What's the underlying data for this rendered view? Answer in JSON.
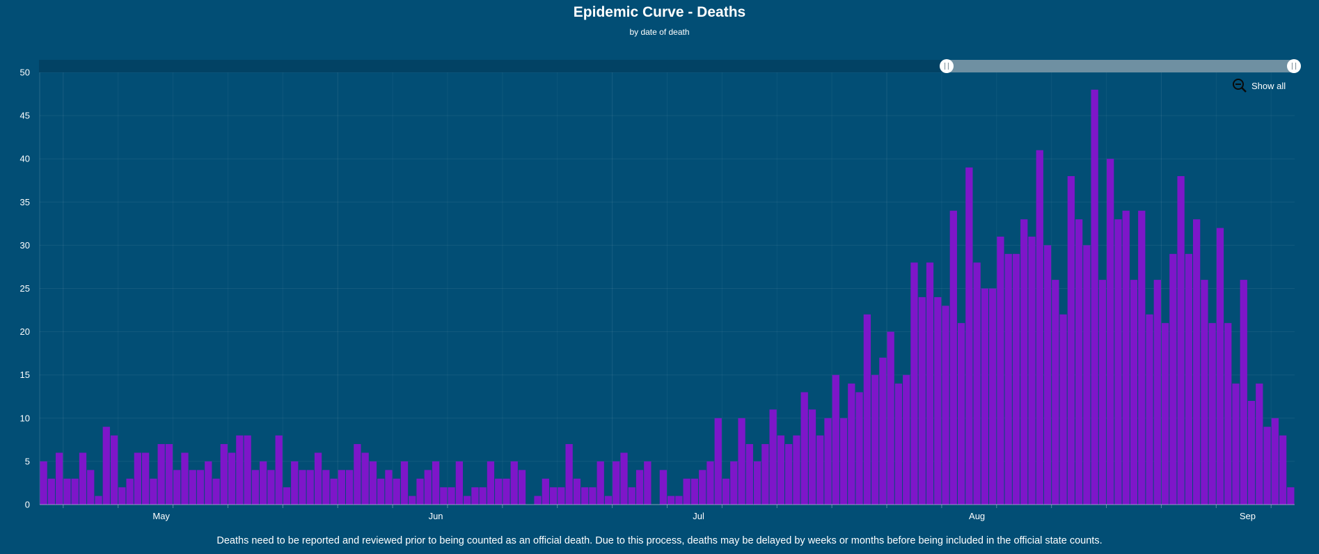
{
  "chart_data": {
    "type": "bar",
    "title": "Epidemic Curve - Deaths",
    "subtitle": "by date of death",
    "ylim": [
      0,
      50
    ],
    "yticks": [
      0,
      5,
      10,
      15,
      20,
      25,
      30,
      35,
      40,
      45,
      50
    ],
    "xtick_labels": [
      "May",
      "Jun",
      "Jul",
      "Aug",
      "Sep"
    ],
    "grid": true,
    "bar_color": "#7e16c9",
    "values": [
      5,
      3,
      6,
      3,
      3,
      6,
      4,
      1,
      9,
      8,
      2,
      3,
      6,
      6,
      3,
      7,
      7,
      4,
      6,
      4,
      4,
      5,
      3,
      7,
      6,
      8,
      8,
      4,
      5,
      4,
      8,
      2,
      5,
      4,
      4,
      6,
      4,
      3,
      4,
      4,
      7,
      6,
      5,
      3,
      4,
      3,
      5,
      1,
      3,
      4,
      5,
      2,
      2,
      5,
      1,
      2,
      2,
      5,
      3,
      3,
      5,
      4,
      0,
      1,
      3,
      2,
      2,
      7,
      3,
      2,
      2,
      5,
      1,
      5,
      6,
      2,
      4,
      5,
      0,
      4,
      1,
      1,
      3,
      3,
      4,
      5,
      10,
      3,
      5,
      10,
      7,
      5,
      7,
      11,
      8,
      7,
      8,
      13,
      11,
      8,
      10,
      15,
      10,
      14,
      13,
      22,
      15,
      17,
      20,
      14,
      15,
      28,
      24,
      28,
      24,
      23,
      34,
      21,
      39,
      28,
      25,
      25,
      31,
      29,
      29,
      33,
      31,
      41,
      30,
      26,
      22,
      38,
      33,
      30,
      48,
      26,
      40,
      33,
      34,
      26,
      34,
      22,
      26,
      21,
      29,
      38,
      29,
      33,
      26,
      21,
      32,
      21,
      14,
      26,
      12,
      14,
      9,
      10,
      8,
      2
    ]
  },
  "show_all_label": "Show all",
  "zoom_icon": "zoom-out-icon",
  "footnote": "Deaths need to be reported and reviewed prior to being counted as an official death. Due to this process, deaths may be delayed by weeks or months before being included in the official state counts."
}
